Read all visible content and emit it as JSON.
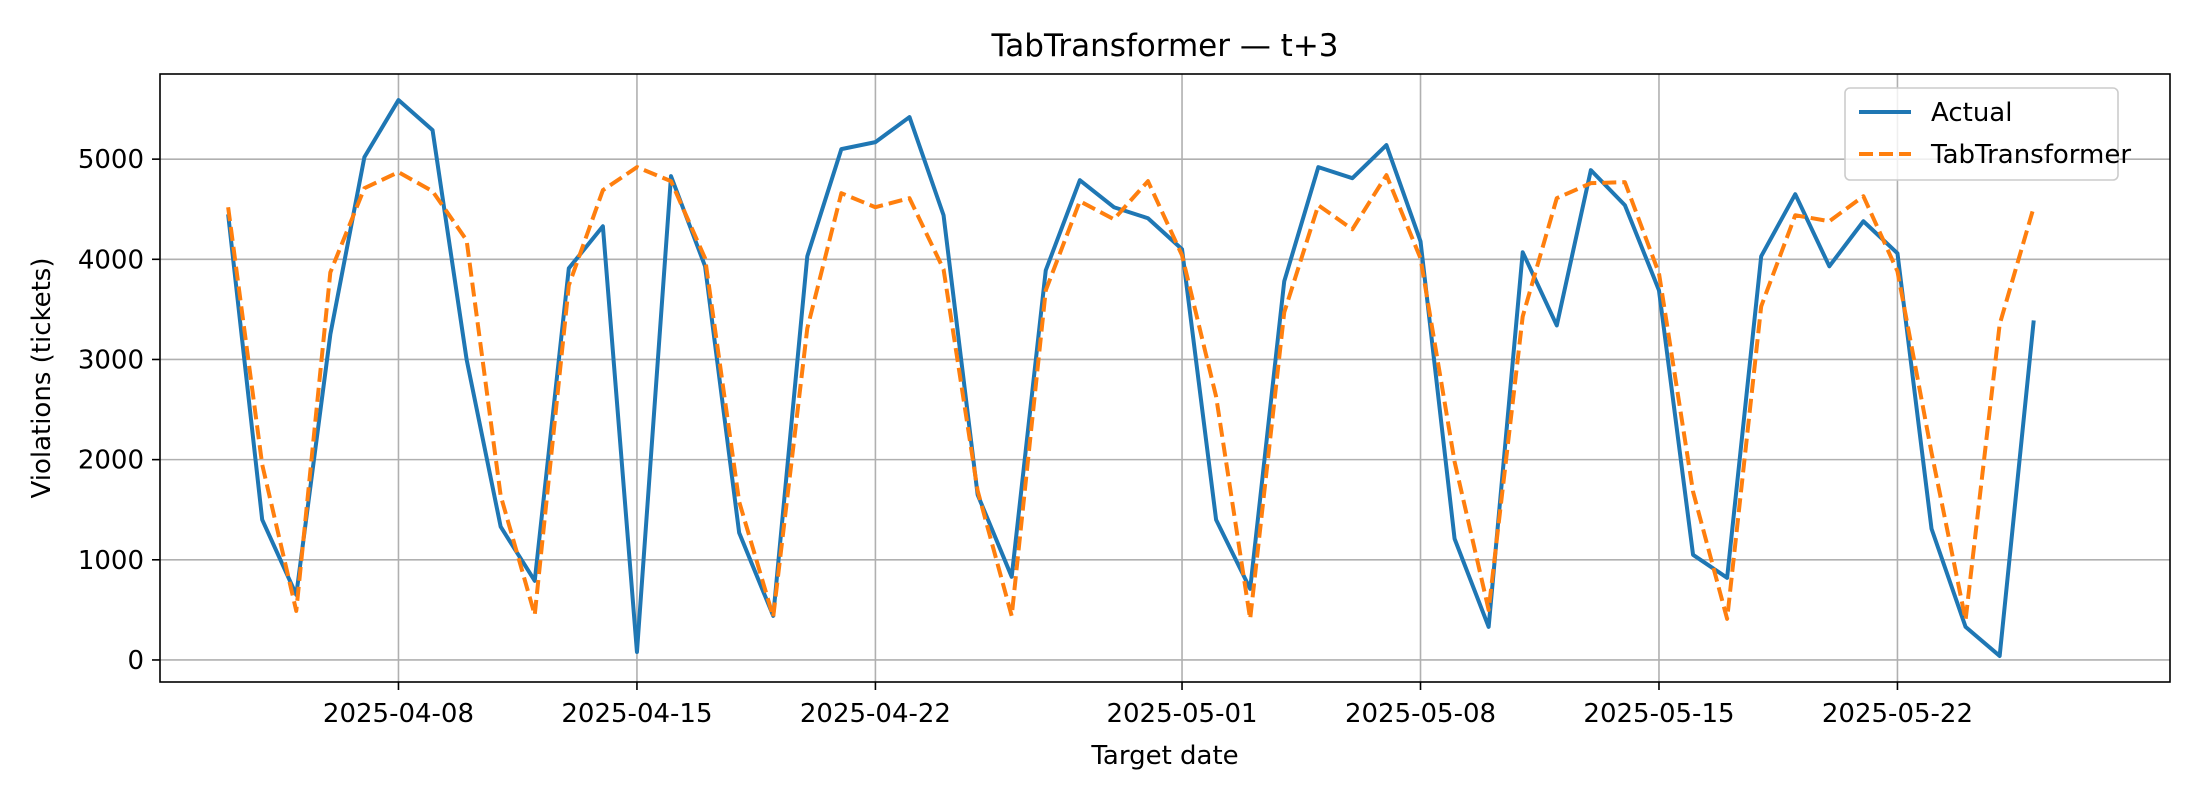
{
  "chart_data": {
    "type": "line",
    "title": "TabTransformer — t+3",
    "xlabel": "Target date",
    "ylabel": "Violations (tickets)",
    "x_start": "2025-04-03",
    "xlim": [
      "2025-04-01",
      "2025-05-30"
    ],
    "ylim": [
      -220,
      5850
    ],
    "x_ticks": [
      "2025-04-08",
      "2025-04-15",
      "2025-04-22",
      "2025-05-01",
      "2025-05-08",
      "2025-05-15",
      "2025-05-22"
    ],
    "y_ticks": [
      0,
      1000,
      2000,
      3000,
      4000,
      5000
    ],
    "grid": true,
    "legend": "top-right",
    "series": [
      {
        "name": "Actual",
        "color": "#1f77b4",
        "style": "solid",
        "values": [
          4450,
          1400,
          650,
          3250,
          5020,
          5590,
          5290,
          3000,
          1330,
          790,
          3910,
          4330,
          80,
          4830,
          3930,
          1270,
          440,
          4030,
          5100,
          5170,
          5420,
          4440,
          1650,
          830,
          3890,
          4790,
          4520,
          4410,
          4100,
          1400,
          710,
          3780,
          4920,
          4810,
          5140,
          4180,
          1210,
          330,
          4070,
          3340,
          4890,
          4540,
          3690,
          1050,
          820,
          4030,
          4650,
          3930,
          4380,
          4060,
          1310,
          330,
          40,
          3390
        ]
      },
      {
        "name": "TabTransformer",
        "color": "#ff7f0e",
        "style": "dashed",
        "values": [
          4520,
          1950,
          490,
          3870,
          4710,
          4870,
          4680,
          4190,
          1640,
          450,
          3740,
          4690,
          4920,
          4780,
          4010,
          1580,
          430,
          3310,
          4660,
          4520,
          4610,
          3900,
          1690,
          440,
          3690,
          4580,
          4400,
          4780,
          4040,
          2630,
          410,
          3470,
          4540,
          4300,
          4840,
          4010,
          1980,
          500,
          3430,
          4610,
          4760,
          4770,
          3860,
          1680,
          410,
          3530,
          4440,
          4380,
          4630,
          3880,
          2070,
          400,
          3350,
          4520
        ]
      }
    ]
  }
}
